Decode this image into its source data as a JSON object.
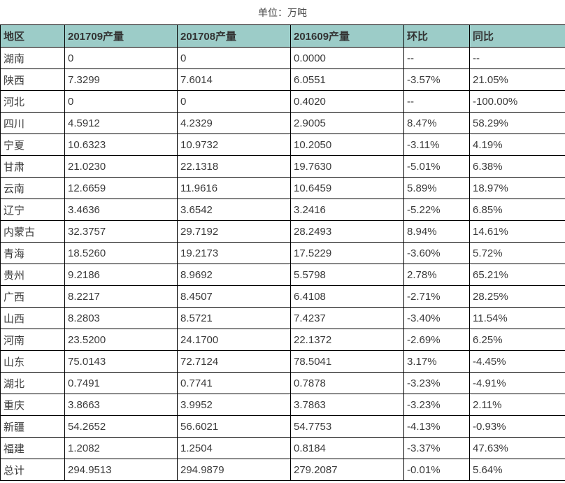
{
  "title": "单位：万吨",
  "chart_data": {
    "type": "table",
    "title": "单位：万吨",
    "columns": [
      "地区",
      "201709产量",
      "201708产量",
      "201609产量",
      "环比",
      "同比"
    ],
    "rows": [
      [
        "湖南",
        "0",
        "0",
        "0.0000",
        "--",
        "--"
      ],
      [
        "陕西",
        "7.3299",
        "7.6014",
        "6.0551",
        "-3.57%",
        "21.05%"
      ],
      [
        "河北",
        "0",
        "0",
        "0.4020",
        "--",
        "-100.00%"
      ],
      [
        "四川",
        "4.5912",
        "4.2329",
        "2.9005",
        "8.47%",
        "58.29%"
      ],
      [
        "宁夏",
        "10.6323",
        "10.9732",
        "10.2050",
        "-3.11%",
        "4.19%"
      ],
      [
        "甘肃",
        "21.0230",
        "22.1318",
        "19.7630",
        "-5.01%",
        "6.38%"
      ],
      [
        "云南",
        "12.6659",
        "11.9616",
        "10.6459",
        "5.89%",
        "18.97%"
      ],
      [
        "辽宁",
        "3.4636",
        "3.6542",
        "3.2416",
        "-5.22%",
        "6.85%"
      ],
      [
        "内蒙古",
        "32.3757",
        "29.7192",
        "28.2493",
        "8.94%",
        "14.61%"
      ],
      [
        "青海",
        "18.5260",
        "19.2173",
        "17.5229",
        "-3.60%",
        "5.72%"
      ],
      [
        "贵州",
        "9.2186",
        "8.9692",
        "5.5798",
        "2.78%",
        "65.21%"
      ],
      [
        "广西",
        "8.2217",
        "8.4507",
        "6.4108",
        "-2.71%",
        "28.25%"
      ],
      [
        "山西",
        "8.2803",
        "8.5721",
        "7.4237",
        "-3.40%",
        "11.54%"
      ],
      [
        "河南",
        "23.5200",
        "24.1700",
        "22.1372",
        "-2.69%",
        "6.25%"
      ],
      [
        "山东",
        "75.0143",
        "72.7124",
        "78.5041",
        "3.17%",
        "-4.45%"
      ],
      [
        "湖北",
        "0.7491",
        "0.7741",
        "0.7878",
        "-3.23%",
        "-4.91%"
      ],
      [
        "重庆",
        "3.8663",
        "3.9952",
        "3.7863",
        "-3.23%",
        "2.11%"
      ],
      [
        "新疆",
        "54.2652",
        "56.6021",
        "54.7753",
        "-4.13%",
        "-0.93%"
      ],
      [
        "福建",
        "1.2082",
        "1.2504",
        "0.8184",
        "-3.37%",
        "47.63%"
      ],
      [
        "总计",
        "294.9513",
        "294.9879",
        "279.2087",
        "-0.01%",
        "5.64%"
      ]
    ]
  },
  "colors": {
    "header_bg": "#9cccc8",
    "border": "#000000",
    "text": "#3a3a3a",
    "title_text": "#4d4d4d"
  }
}
